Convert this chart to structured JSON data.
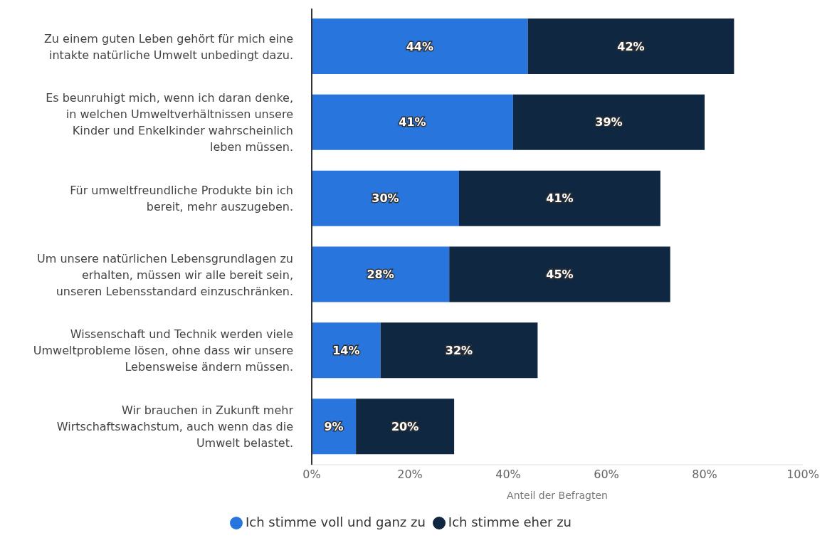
{
  "chart_data": {
    "type": "bar",
    "orientation": "horizontal",
    "stacked": true,
    "xlabel": "Anteil der Befragten",
    "categories": [
      "Zu einem guten Leben gehört für mich eine intakte natürliche Umwelt unbedingt dazu.",
      "Es beunruhigt mich, wenn ich daran denke, in welchen Umweltverhältnissen unsere Kinder und Enkelkinder wahrscheinlich leben müssen.",
      "Für umweltfreundliche Produkte bin ich bereit, mehr auszugeben.",
      "Um unsere natürlichen Lebensgrundlagen zu erhalten, müssen wir alle bereit sein, unseren Lebensstandard einzuschränken.",
      "Wissenschaft und Technik werden viele Umweltprobleme lösen, ohne dass wir unsere Lebensweise ändern müssen.",
      "Wir brauchen in Zukunft mehr Wirtschaftswachstum, auch wenn das die Umwelt belastet."
    ],
    "series": [
      {
        "name": "Ich stimme voll und ganz zu",
        "color": "#2876dd",
        "values": [
          44,
          41,
          30,
          28,
          14,
          9
        ],
        "value_labels": [
          "44%",
          "41%",
          "30%",
          "28%",
          "14%",
          "9%"
        ]
      },
      {
        "name": "Ich stimme eher zu",
        "color": "#0f2741",
        "values": [
          42,
          39,
          41,
          45,
          32,
          20
        ],
        "value_labels": [
          "42%",
          "39%",
          "41%",
          "45%",
          "32%",
          "20%"
        ]
      }
    ],
    "xlim": [
      0,
      100
    ],
    "xticks": [
      {
        "value": 0,
        "label": "0%"
      },
      {
        "value": 20,
        "label": "20%"
      },
      {
        "value": 40,
        "label": "40%"
      },
      {
        "value": 60,
        "label": "60%"
      },
      {
        "value": 80,
        "label": "80%"
      },
      {
        "value": 100,
        "label": "100%"
      }
    ],
    "grid": false,
    "legend": "bottom"
  }
}
